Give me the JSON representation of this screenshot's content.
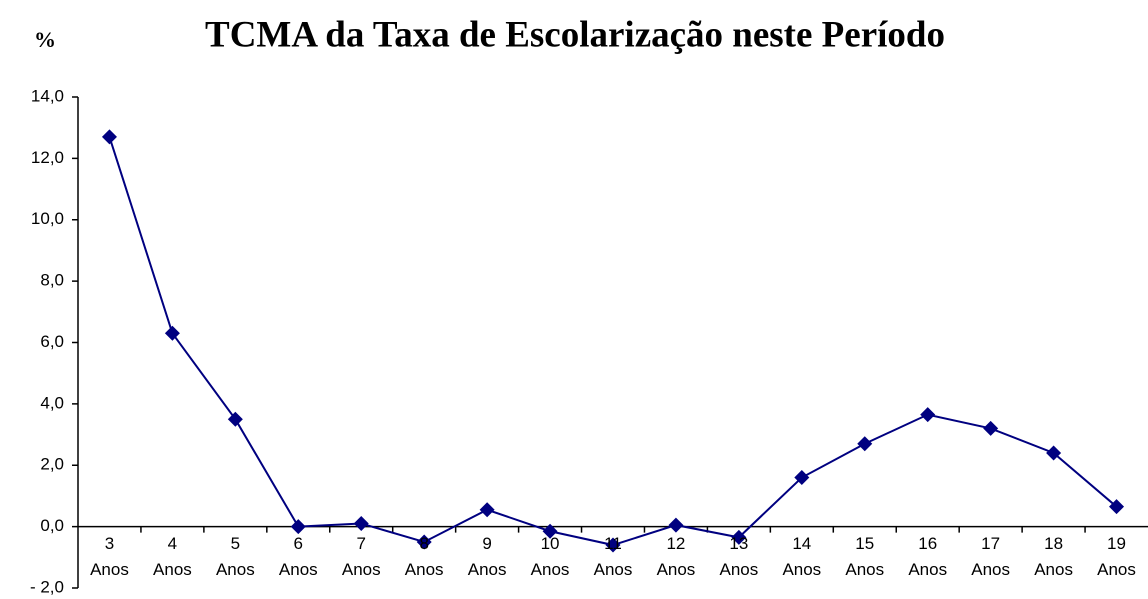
{
  "chart_data": {
    "type": "line",
    "title": "TCMA da Taxa de Escolarização neste Período",
    "y_label": "%",
    "categories": [
      "3 Anos",
      "4 Anos",
      "5 Anos",
      "6 Anos",
      "7 Anos",
      "8 Anos",
      "9 Anos",
      "10 Anos",
      "11 Anos",
      "12 Anos",
      "13 Anos",
      "14 Anos",
      "15 Anos",
      "16 Anos",
      "17 Anos",
      "18 Anos",
      "19 Anos"
    ],
    "values": [
      12.7,
      6.3,
      3.5,
      0.0,
      0.1,
      -0.5,
      0.55,
      -0.15,
      -0.6,
      0.05,
      -0.35,
      1.6,
      2.7,
      3.65,
      3.2,
      2.4,
      0.65
    ],
    "color": "#000080",
    "ylim": [
      -2,
      14
    ],
    "yticks": [
      {
        "value": -2,
        "label": "- 2,0"
      },
      {
        "value": 0,
        "label": "0,0"
      },
      {
        "value": 2,
        "label": "2,0"
      },
      {
        "value": 4,
        "label": "4,0"
      },
      {
        "value": 6,
        "label": "6,0"
      },
      {
        "value": 8,
        "label": "8,0"
      },
      {
        "value": 10,
        "label": "10,0"
      },
      {
        "value": 12,
        "label": "12,0"
      },
      {
        "value": 14,
        "label": "14,0"
      }
    ],
    "grid": false
  }
}
